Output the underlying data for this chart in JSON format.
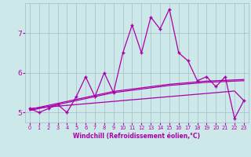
{
  "xlabel": "Windchill (Refroidissement éolien,°C)",
  "bg_color": "#cce8e8",
  "grid_color": "#aabbcc",
  "line_color": "#aa00aa",
  "xlim": [
    -0.5,
    23.5
  ],
  "ylim": [
    4.75,
    7.75
  ],
  "yticks": [
    5,
    6,
    7
  ],
  "xticks": [
    0,
    1,
    2,
    3,
    4,
    5,
    6,
    7,
    8,
    9,
    10,
    11,
    12,
    13,
    14,
    15,
    16,
    17,
    18,
    19,
    20,
    21,
    22,
    23
  ],
  "main_y": [
    5.1,
    5.0,
    5.1,
    5.2,
    5.0,
    5.4,
    5.9,
    5.4,
    6.0,
    5.5,
    6.5,
    7.2,
    6.5,
    7.4,
    7.1,
    7.6,
    6.5,
    6.3,
    5.8,
    5.9,
    5.65,
    5.9,
    4.85,
    5.3
  ],
  "trend1_y": [
    5.08,
    5.13,
    5.18,
    5.23,
    5.28,
    5.33,
    5.38,
    5.43,
    5.48,
    5.53,
    5.56,
    5.59,
    5.62,
    5.65,
    5.68,
    5.71,
    5.73,
    5.75,
    5.77,
    5.79,
    5.8,
    5.81,
    5.82,
    5.83
  ],
  "trend2_y": [
    5.05,
    5.1,
    5.15,
    5.2,
    5.25,
    5.3,
    5.35,
    5.4,
    5.45,
    5.5,
    5.53,
    5.56,
    5.59,
    5.62,
    5.65,
    5.68,
    5.7,
    5.72,
    5.74,
    5.76,
    5.77,
    5.78,
    5.79,
    5.8
  ],
  "trend3_y": [
    5.1,
    5.12,
    5.14,
    5.16,
    5.18,
    5.2,
    5.22,
    5.24,
    5.26,
    5.28,
    5.3,
    5.32,
    5.34,
    5.36,
    5.38,
    5.4,
    5.42,
    5.44,
    5.46,
    5.48,
    5.5,
    5.52,
    5.54,
    5.3
  ],
  "xlabel_fontsize": 5.5,
  "ytick_fontsize": 6.5,
  "xtick_fontsize": 4.8
}
